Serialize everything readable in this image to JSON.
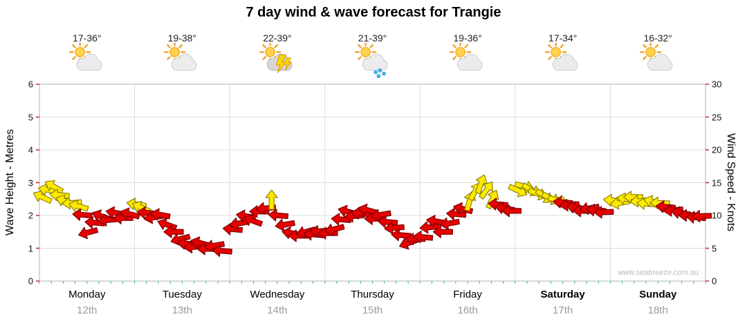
{
  "title": "7 day wind & wave forecast for Trangie",
  "watermark": "www.seabreeze.com.au",
  "left_axis": {
    "title": "Wave Height - Metres",
    "ticks": [
      0,
      1,
      2,
      3,
      4,
      5,
      6
    ],
    "range": [
      0,
      6
    ]
  },
  "right_axis": {
    "title": "Wind Speed - Knots",
    "ticks": [
      0,
      5,
      10,
      15,
      20,
      25,
      30
    ],
    "range": [
      0,
      30
    ]
  },
  "days": [
    {
      "name": "Monday",
      "date": "12th",
      "temp": "17-36°",
      "icon": "sun-cloud",
      "bold": false
    },
    {
      "name": "Tuesday",
      "date": "13th",
      "temp": "19-38°",
      "icon": "sun-cloud",
      "bold": false
    },
    {
      "name": "Wednesday",
      "date": "14th",
      "temp": "22-39°",
      "icon": "storm",
      "bold": false
    },
    {
      "name": "Thursday",
      "date": "15th",
      "temp": "21-39°",
      "icon": "rain-sun",
      "bold": false
    },
    {
      "name": "Friday",
      "date": "16th",
      "temp": "19-36°",
      "icon": "sun-cloud",
      "bold": false
    },
    {
      "name": "Saturday",
      "date": "17th",
      "temp": "17-34°",
      "icon": "sun-cloud",
      "bold": true
    },
    {
      "name": "Sunday",
      "date": "18th",
      "temp": "16-32°",
      "icon": "sun-cloud",
      "bold": true
    }
  ],
  "colors": {
    "yellow_fill": "#ffe900",
    "yellow_stroke": "#8f8400",
    "red_fill": "#e60000",
    "red_stroke": "#7c0000",
    "grid": "#dcdcdc",
    "axis": "#b0b0b0",
    "tick_red": "#cc2222",
    "tick_teal": "#2ab5b5",
    "date_gray": "#9a9a9a",
    "watermark_gray": "#bcbcbc"
  },
  "chart_data": {
    "type": "wind-arrows",
    "title": "7 day wind & wave forecast for Trangie",
    "categories": [
      "Monday 12th",
      "Tuesday 13th",
      "Wednesday 14th",
      "Thursday 15th",
      "Friday 16th",
      "Saturday 17th",
      "Sunday 18th"
    ],
    "y_left": {
      "label": "Wave Height - Metres",
      "range": [
        0,
        6
      ]
    },
    "y_right": {
      "label": "Wind Speed - Knots",
      "range": [
        0,
        30
      ]
    },
    "legend": "arrow color: y=yellow, r=red; value axis = wind speed in knots",
    "points_schema": [
      "day_index",
      "day_fraction",
      "wind_knots",
      "arrow_direction_deg",
      "color"
    ],
    "points": [
      [
        0,
        0.03,
        12.8,
        205,
        "y"
      ],
      [
        0,
        0.09,
        13.9,
        190,
        "y"
      ],
      [
        0,
        0.15,
        14.4,
        210,
        "y"
      ],
      [
        0,
        0.21,
        13.1,
        185,
        "y"
      ],
      [
        0,
        0.27,
        12.2,
        200,
        "y"
      ],
      [
        0,
        0.34,
        11.9,
        175,
        "y"
      ],
      [
        0,
        0.41,
        11.4,
        195,
        "y"
      ],
      [
        0,
        0.45,
        10.1,
        185,
        "r"
      ],
      [
        0,
        0.51,
        7.4,
        165,
        "r"
      ],
      [
        0,
        0.58,
        8.9,
        185,
        "r"
      ],
      [
        0,
        0.65,
        9.9,
        200,
        "r"
      ],
      [
        0,
        0.72,
        9.3,
        175,
        "r"
      ],
      [
        0,
        0.8,
        10.4,
        190,
        "r"
      ],
      [
        0,
        0.88,
        9.6,
        180,
        "r"
      ],
      [
        0,
        0.95,
        10.2,
        195,
        "r"
      ],
      [
        1,
        0.02,
        11.7,
        190,
        "y"
      ],
      [
        1,
        0.07,
        11.2,
        205,
        "y"
      ],
      [
        1,
        0.13,
        10.4,
        185,
        "r"
      ],
      [
        1,
        0.2,
        9.7,
        170,
        "r"
      ],
      [
        1,
        0.27,
        10.1,
        190,
        "r"
      ],
      [
        1,
        0.34,
        8.6,
        200,
        "r"
      ],
      [
        1,
        0.41,
        7.5,
        180,
        "r"
      ],
      [
        1,
        0.48,
        6.4,
        165,
        "r"
      ],
      [
        1,
        0.55,
        5.7,
        185,
        "r"
      ],
      [
        1,
        0.62,
        5.2,
        175,
        "r"
      ],
      [
        1,
        0.69,
        5.8,
        195,
        "r"
      ],
      [
        1,
        0.76,
        4.9,
        180,
        "r"
      ],
      [
        1,
        0.84,
        5.4,
        170,
        "r"
      ],
      [
        1,
        0.92,
        4.6,
        185,
        "r"
      ],
      [
        2,
        0.03,
        7.9,
        185,
        "r"
      ],
      [
        2,
        0.1,
        8.8,
        170,
        "r"
      ],
      [
        2,
        0.17,
        9.9,
        190,
        "r"
      ],
      [
        2,
        0.24,
        9.2,
        200,
        "r"
      ],
      [
        2,
        0.31,
        10.6,
        180,
        "r"
      ],
      [
        2,
        0.38,
        11.1,
        175,
        "r"
      ],
      [
        2,
        0.44,
        12.4,
        -90,
        "y"
      ],
      [
        2,
        0.51,
        10.0,
        185,
        "r"
      ],
      [
        2,
        0.58,
        8.6,
        170,
        "r"
      ],
      [
        2,
        0.65,
        7.3,
        190,
        "r"
      ],
      [
        2,
        0.72,
        6.9,
        180,
        "r"
      ],
      [
        2,
        0.8,
        7.5,
        165,
        "r"
      ],
      [
        2,
        0.88,
        7.1,
        185,
        "r"
      ],
      [
        2,
        0.95,
        7.6,
        175,
        "r"
      ],
      [
        3,
        0.03,
        7.3,
        180,
        "r"
      ],
      [
        3,
        0.1,
        7.9,
        165,
        "r"
      ],
      [
        3,
        0.17,
        9.4,
        185,
        "r"
      ],
      [
        3,
        0.24,
        10.6,
        195,
        "r"
      ],
      [
        3,
        0.31,
        9.9,
        175,
        "r"
      ],
      [
        3,
        0.38,
        10.3,
        185,
        "r"
      ],
      [
        3,
        0.45,
        10.8,
        195,
        "r"
      ],
      [
        3,
        0.52,
        9.5,
        180,
        "r"
      ],
      [
        3,
        0.59,
        10.1,
        170,
        "r"
      ],
      [
        3,
        0.66,
        9.0,
        185,
        "r"
      ],
      [
        3,
        0.73,
        8.1,
        175,
        "r"
      ],
      [
        3,
        0.8,
        7.0,
        185,
        "r"
      ],
      [
        3,
        0.88,
        5.8,
        160,
        "r"
      ],
      [
        3,
        0.95,
        6.4,
        180,
        "r"
      ],
      [
        4,
        0.03,
        6.7,
        185,
        "r"
      ],
      [
        4,
        0.1,
        8.2,
        175,
        "r"
      ],
      [
        4,
        0.17,
        9.1,
        190,
        "r"
      ],
      [
        4,
        0.24,
        7.5,
        180,
        "r"
      ],
      [
        4,
        0.31,
        8.8,
        170,
        "r"
      ],
      [
        4,
        0.38,
        10.2,
        185,
        "r"
      ],
      [
        4,
        0.45,
        11.0,
        195,
        "r"
      ],
      [
        4,
        0.52,
        12.2,
        -75,
        "y"
      ],
      [
        4,
        0.58,
        13.7,
        -60,
        "y"
      ],
      [
        4,
        0.64,
        14.8,
        -70,
        "y"
      ],
      [
        4,
        0.7,
        13.9,
        -55,
        "y"
      ],
      [
        4,
        0.76,
        12.5,
        -65,
        "y"
      ],
      [
        4,
        0.82,
        11.7,
        185,
        "r"
      ],
      [
        4,
        0.89,
        11.1,
        190,
        "r"
      ],
      [
        4,
        0.96,
        10.7,
        180,
        "r"
      ],
      [
        5,
        0.03,
        13.8,
        25,
        "y"
      ],
      [
        5,
        0.1,
        14.4,
        15,
        "y"
      ],
      [
        5,
        0.17,
        13.9,
        30,
        "y"
      ],
      [
        5,
        0.24,
        13.3,
        20,
        "y"
      ],
      [
        5,
        0.31,
        12.9,
        35,
        "y"
      ],
      [
        5,
        0.38,
        12.6,
        25,
        "y"
      ],
      [
        5,
        0.45,
        12.3,
        15,
        "y"
      ],
      [
        5,
        0.5,
        12.0,
        185,
        "r"
      ],
      [
        5,
        0.57,
        11.6,
        175,
        "r"
      ],
      [
        5,
        0.64,
        11.2,
        190,
        "r"
      ],
      [
        5,
        0.71,
        10.7,
        180,
        "r"
      ],
      [
        5,
        0.78,
        11.1,
        170,
        "r"
      ],
      [
        5,
        0.85,
        10.8,
        185,
        "r"
      ],
      [
        5,
        0.93,
        10.5,
        178,
        "r"
      ],
      [
        6,
        0.03,
        12.3,
        185,
        "y"
      ],
      [
        6,
        0.1,
        11.9,
        170,
        "y"
      ],
      [
        6,
        0.17,
        12.5,
        190,
        "y"
      ],
      [
        6,
        0.24,
        12.8,
        180,
        "y"
      ],
      [
        6,
        0.31,
        12.2,
        175,
        "y"
      ],
      [
        6,
        0.38,
        11.8,
        185,
        "y"
      ],
      [
        6,
        0.45,
        12.1,
        195,
        "y"
      ],
      [
        6,
        0.52,
        11.9,
        182,
        "y"
      ],
      [
        6,
        0.58,
        11.3,
        185,
        "r"
      ],
      [
        6,
        0.66,
        10.8,
        175,
        "r"
      ],
      [
        6,
        0.74,
        10.4,
        190,
        "r"
      ],
      [
        6,
        0.82,
        10.0,
        180,
        "r"
      ],
      [
        6,
        0.9,
        9.7,
        185,
        "r"
      ],
      [
        6,
        0.96,
        9.9,
        178,
        "r"
      ]
    ]
  }
}
